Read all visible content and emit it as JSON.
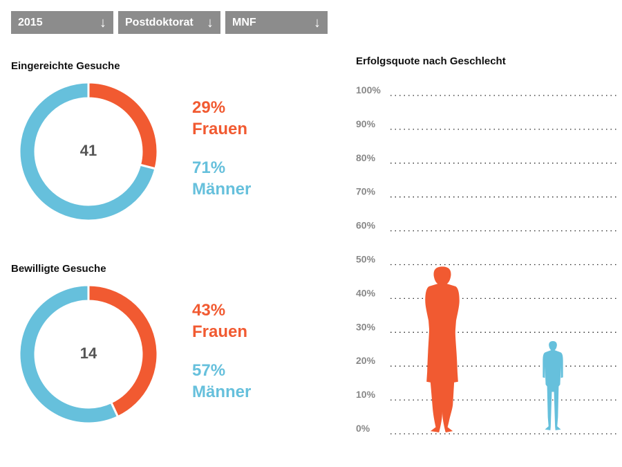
{
  "filters": {
    "year": {
      "value": "2015"
    },
    "career": {
      "value": "Postdoktorat"
    },
    "field": {
      "value": "MNF"
    }
  },
  "colors": {
    "women": "#f15a31",
    "men": "#66c0dc",
    "dropdown_bg": "#8c8c8c"
  },
  "icons": {
    "dropdown_arrow": "arrow-down-icon"
  },
  "chart_data": [
    {
      "type": "pie",
      "title": "Eingereichte Gesuche",
      "total": "41",
      "categories": [
        "Frauen",
        "Männer"
      ],
      "values": [
        29,
        71
      ],
      "labels": [
        {
          "pct": "29%",
          "name": "Frauen"
        },
        {
          "pct": "71%",
          "name": "Männer"
        }
      ]
    },
    {
      "type": "pie",
      "title": "Bewilligte Gesuche",
      "total": "14",
      "categories": [
        "Frauen",
        "Männer"
      ],
      "values": [
        43,
        57
      ],
      "labels": [
        {
          "pct": "43%",
          "name": "Frauen"
        },
        {
          "pct": "57%",
          "name": "Männer"
        }
      ]
    },
    {
      "type": "bar",
      "title": "Erfolgsquote nach Geschlecht",
      "categories": [
        "Frauen",
        "Männer"
      ],
      "values": [
        49,
        27
      ],
      "ylim": [
        0,
        100
      ],
      "yticks": [
        "0%",
        "10%",
        "20%",
        "30%",
        "40%",
        "50%",
        "60%",
        "70%",
        "80%",
        "90%",
        "100%"
      ],
      "grid": true,
      "markers": [
        "woman-silhouette-icon",
        "man-silhouette-icon"
      ]
    }
  ]
}
